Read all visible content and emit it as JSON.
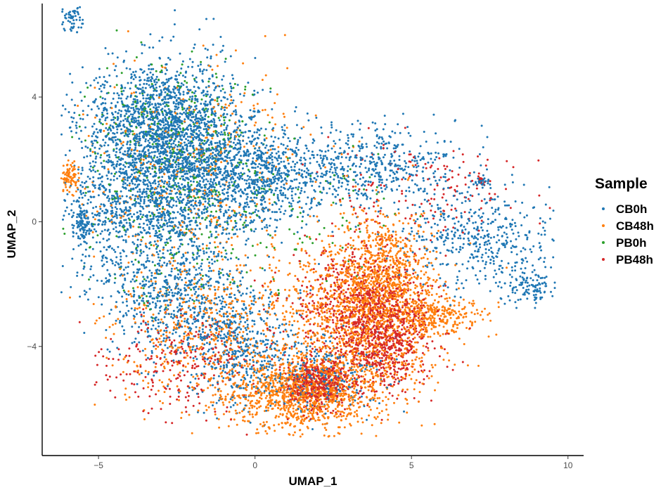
{
  "chart_data": {
    "type": "scatter",
    "xlabel": "UMAP_1",
    "ylabel": "UMAP_2",
    "xlim": [
      -6.8,
      10.5
    ],
    "ylim": [
      -7.5,
      7.0
    ],
    "x_ticks": [
      -5,
      0,
      5,
      10
    ],
    "y_ticks": [
      -4,
      0,
      4
    ],
    "grid": false,
    "legend": {
      "title": "Sample",
      "placement": "right",
      "entries": [
        "CB0h",
        "CB48h",
        "PB0h",
        "PB48h"
      ]
    },
    "colors": {
      "CB0h": "#1f77b4",
      "CB48h": "#ff7f0e",
      "PB0h": "#2ca02c",
      "PB48h": "#d62728"
    },
    "series": [
      {
        "name": "CB0h",
        "clusters": [
          {
            "cx": -3.0,
            "cy": 3.2,
            "sx": 1.2,
            "sy": 1.0,
            "n": 1500
          },
          {
            "cx": -3.5,
            "cy": 0.5,
            "sx": 1.3,
            "sy": 1.2,
            "n": 1100
          },
          {
            "cx": -1.5,
            "cy": 1.5,
            "sx": 1.1,
            "sy": 1.0,
            "n": 800
          },
          {
            "cx": 0.5,
            "cy": 1.5,
            "sx": 1.0,
            "sy": 0.8,
            "n": 500
          },
          {
            "cx": 3.5,
            "cy": 1.8,
            "sx": 1.5,
            "sy": 0.6,
            "n": 500
          },
          {
            "cx": 7.0,
            "cy": -0.5,
            "sx": 1.2,
            "sy": 0.8,
            "n": 450
          },
          {
            "cx": 8.8,
            "cy": -2.0,
            "sx": 0.5,
            "sy": 0.3,
            "n": 120
          },
          {
            "cx": -2.5,
            "cy": -2.5,
            "sx": 1.2,
            "sy": 0.9,
            "n": 600
          },
          {
            "cx": -0.5,
            "cy": -4.0,
            "sx": 1.0,
            "sy": 0.9,
            "n": 450
          },
          {
            "cx": 2.0,
            "cy": -5.0,
            "sx": 1.0,
            "sy": 0.6,
            "n": 250
          },
          {
            "cx": -5.9,
            "cy": 6.5,
            "sx": 0.2,
            "sy": 0.2,
            "n": 60
          },
          {
            "cx": 7.2,
            "cy": 1.3,
            "sx": 0.1,
            "sy": 0.1,
            "n": 25
          },
          {
            "cx": -5.5,
            "cy": 0.0,
            "sx": 0.15,
            "sy": 0.3,
            "n": 100
          }
        ]
      },
      {
        "name": "CB48h",
        "clusters": [
          {
            "cx": 3.5,
            "cy": -3.0,
            "sx": 1.2,
            "sy": 1.2,
            "n": 1400
          },
          {
            "cx": 1.5,
            "cy": -5.5,
            "sx": 1.2,
            "sy": 0.6,
            "n": 1100
          },
          {
            "cx": 4.2,
            "cy": -1.5,
            "sx": 0.7,
            "sy": 1.0,
            "n": 500
          },
          {
            "cx": 5.8,
            "cy": -3.0,
            "sx": 0.8,
            "sy": 0.3,
            "n": 250
          },
          {
            "cx": -1.5,
            "cy": -3.5,
            "sx": 1.5,
            "sy": 1.2,
            "n": 550
          },
          {
            "cx": -2.0,
            "cy": 1.5,
            "sx": 2.0,
            "sy": 1.8,
            "n": 400
          },
          {
            "cx": -5.9,
            "cy": 1.4,
            "sx": 0.15,
            "sy": 0.25,
            "n": 80
          }
        ]
      },
      {
        "name": "PB0h",
        "clusters": [
          {
            "cx": -2.8,
            "cy": 2.8,
            "sx": 1.3,
            "sy": 1.1,
            "n": 260
          },
          {
            "cx": -2.5,
            "cy": 0.0,
            "sx": 1.5,
            "sy": 1.3,
            "n": 180
          },
          {
            "cx": 1.0,
            "cy": 0.5,
            "sx": 2.0,
            "sy": 1.5,
            "n": 100
          }
        ]
      },
      {
        "name": "PB48h",
        "clusters": [
          {
            "cx": 4.0,
            "cy": -3.5,
            "sx": 0.8,
            "sy": 1.0,
            "n": 900
          },
          {
            "cx": 2.0,
            "cy": -5.2,
            "sx": 0.5,
            "sy": 0.4,
            "n": 450
          },
          {
            "cx": 3.0,
            "cy": -2.5,
            "sx": 1.2,
            "sy": 0.9,
            "n": 300
          },
          {
            "cx": -2.5,
            "cy": -4.5,
            "sx": 1.2,
            "sy": 0.8,
            "n": 250
          },
          {
            "cx": 5.5,
            "cy": 1.0,
            "sx": 1.5,
            "sy": 0.8,
            "n": 150
          },
          {
            "cx": 7.2,
            "cy": 1.3,
            "sx": 0.1,
            "sy": 0.1,
            "n": 15
          }
        ]
      }
    ]
  }
}
